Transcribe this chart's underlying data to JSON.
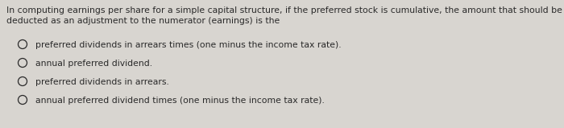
{
  "background_color": "#d8d5d0",
  "question_line1": "In computing earnings per share for a simple capital structure, if the preferred stock is cumulative, the amount that should be",
  "question_line2": "deducted as an adjustment to the numerator (earnings) is the",
  "options": [
    "preferred dividends in arrears times (one minus the income tax rate).",
    "annual preferred dividend.",
    "preferred dividends in arrears.",
    "annual preferred dividend times (one minus the income tax rate)."
  ],
  "question_fontsize": 7.8,
  "option_fontsize": 7.8,
  "text_color": "#2a2a2a",
  "circle_color": "#2a2a2a",
  "fig_width": 7.0,
  "fig_height": 1.59,
  "dpi": 100
}
